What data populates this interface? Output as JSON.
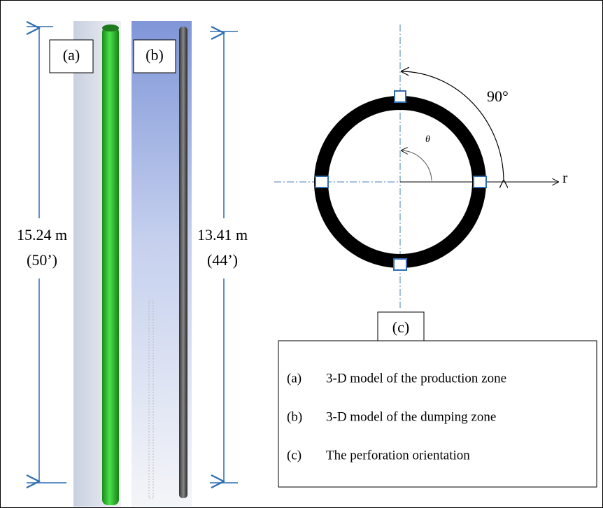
{
  "panels": {
    "a": "(a)",
    "b": "(b)",
    "c": "(c)"
  },
  "dimensions": {
    "a": {
      "metric": "15.24 m",
      "imperial": "(50’)"
    },
    "b": {
      "metric": "13.41 m",
      "imperial": "(44’)"
    }
  },
  "orientation": {
    "angle": "90°",
    "theta": "θ",
    "radial": "r"
  },
  "legend": [
    {
      "marker": "(a)",
      "text": "3-D model of the production zone"
    },
    {
      "marker": "(b)",
      "text": "3-D model of the dumping zone"
    },
    {
      "marker": "(c)",
      "text": "The perforation orientation"
    }
  ]
}
